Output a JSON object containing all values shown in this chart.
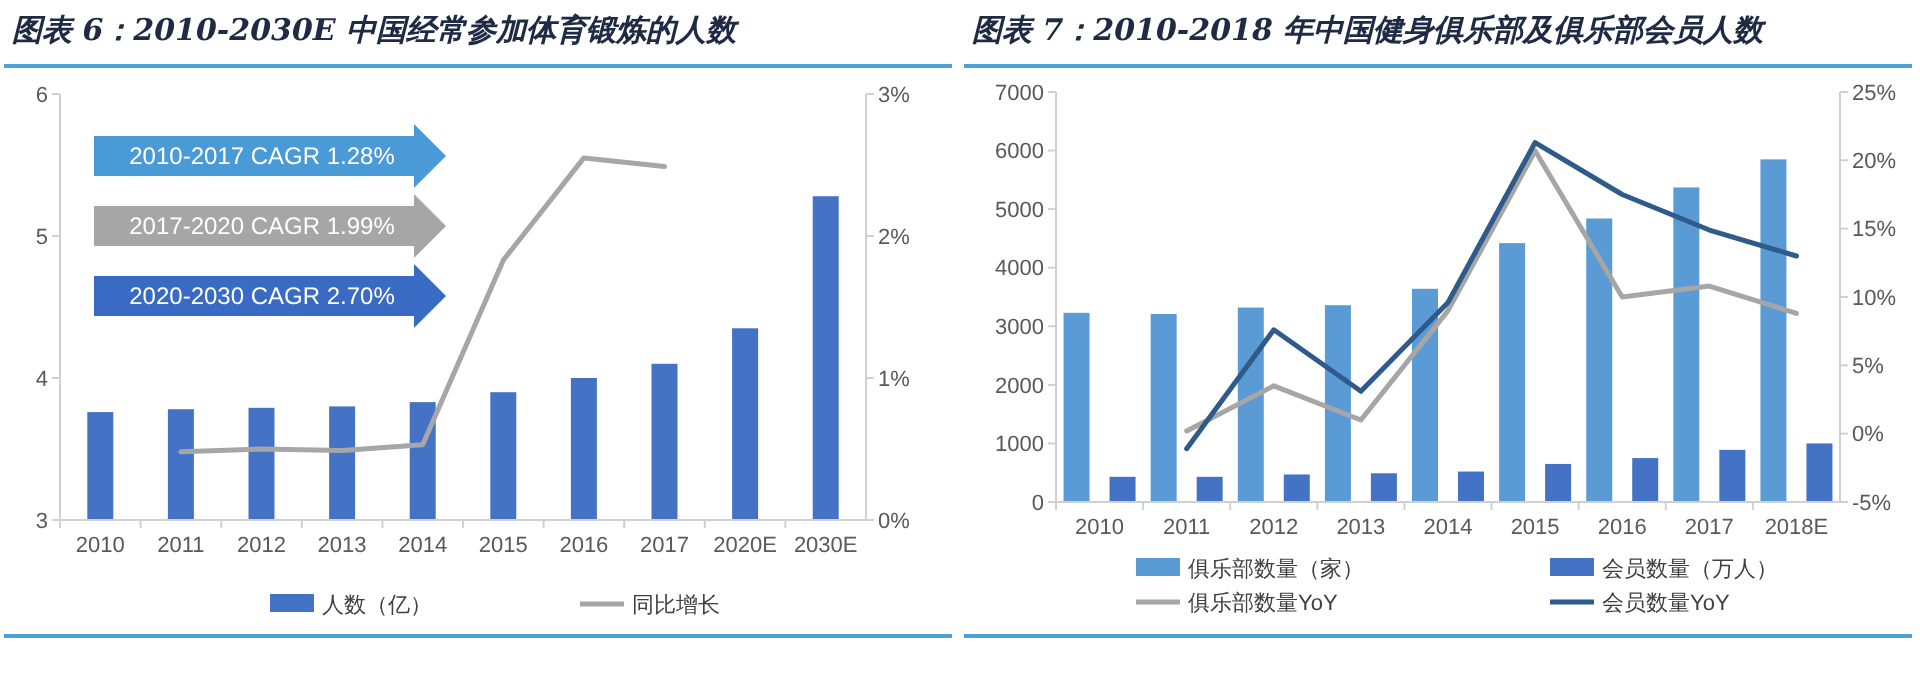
{
  "chart_data": [
    {
      "type": "bar",
      "title": "图表 6：2010-2030E 中国经常参加体育锻炼的人数",
      "categories": [
        "2010",
        "2011",
        "2012",
        "2013",
        "2014",
        "2015",
        "2016",
        "2017",
        "2020E",
        "2030E"
      ],
      "series": [
        {
          "name": "人数（亿）",
          "color": "#4472c4",
          "values": [
            3.76,
            3.78,
            3.79,
            3.8,
            3.83,
            3.9,
            4.0,
            4.1,
            4.35,
            5.28
          ]
        },
        {
          "name": "同比增长",
          "type": "line",
          "axis": "y2",
          "color": "#a6a6a6",
          "values": [
            null,
            0.48,
            0.5,
            0.49,
            0.53,
            1.83,
            2.55,
            2.49,
            null,
            null
          ]
        }
      ],
      "ylim": [
        3,
        6
      ],
      "yticks": [
        3,
        4,
        5,
        6
      ],
      "y2lim": [
        0,
        3
      ],
      "y2ticks": [
        {
          "value": 0,
          "label": "0%"
        },
        {
          "value": 1,
          "label": "1%"
        },
        {
          "value": 2,
          "label": "2%"
        },
        {
          "value": 3,
          "label": "3%"
        }
      ],
      "annotations": [
        "2010-2017 CAGR 1.28%",
        "2017-2020 CAGR 1.99%",
        "2020-2030 CAGR 2.70%"
      ],
      "grid": false,
      "legend": "bottom",
      "marker": "none"
    },
    {
      "type": "bar",
      "title": "图表 7：2010-2018 年中国健身俱乐部及俱乐部会员人数",
      "categories": [
        "2010",
        "2011",
        "2012",
        "2013",
        "2014",
        "2015",
        "2016",
        "2017",
        "2018E"
      ],
      "series": [
        {
          "name": "俱乐部数量（家）",
          "color": "#5b9bd5",
          "values": [
            3230,
            3210,
            3320,
            3360,
            3640,
            4420,
            4840,
            5370,
            5850
          ]
        },
        {
          "name": "会员数量（万人）",
          "color": "#4472c4",
          "values": [
            430,
            430,
            470,
            490,
            520,
            650,
            750,
            890,
            1000
          ]
        },
        {
          "name": "俱乐部数量YoY",
          "type": "line",
          "axis": "y2",
          "color": "#a6a6a6",
          "values": [
            null,
            0.2,
            3.5,
            1.0,
            9.0,
            20.7,
            10.0,
            10.8,
            8.8
          ]
        },
        {
          "name": "会员数量YoY",
          "type": "line",
          "axis": "y2",
          "color": "#2e5b8a",
          "values": [
            null,
            -1.1,
            7.6,
            3.1,
            9.6,
            21.3,
            17.5,
            14.9,
            13.0
          ]
        }
      ],
      "ylim": [
        0,
        7000
      ],
      "yticks": [
        0,
        1000,
        2000,
        3000,
        4000,
        5000,
        6000,
        7000
      ],
      "y2lim": [
        -5,
        25
      ],
      "y2ticks": [
        {
          "value": -5,
          "label": "-5%"
        },
        {
          "value": 0,
          "label": "0%"
        },
        {
          "value": 5,
          "label": "5%"
        },
        {
          "value": 10,
          "label": "10%"
        },
        {
          "value": 15,
          "label": "15%"
        },
        {
          "value": 20,
          "label": "20%"
        },
        {
          "value": 25,
          "label": "25%"
        }
      ],
      "grid": false,
      "legend": "bottom",
      "marker": "none"
    }
  ]
}
